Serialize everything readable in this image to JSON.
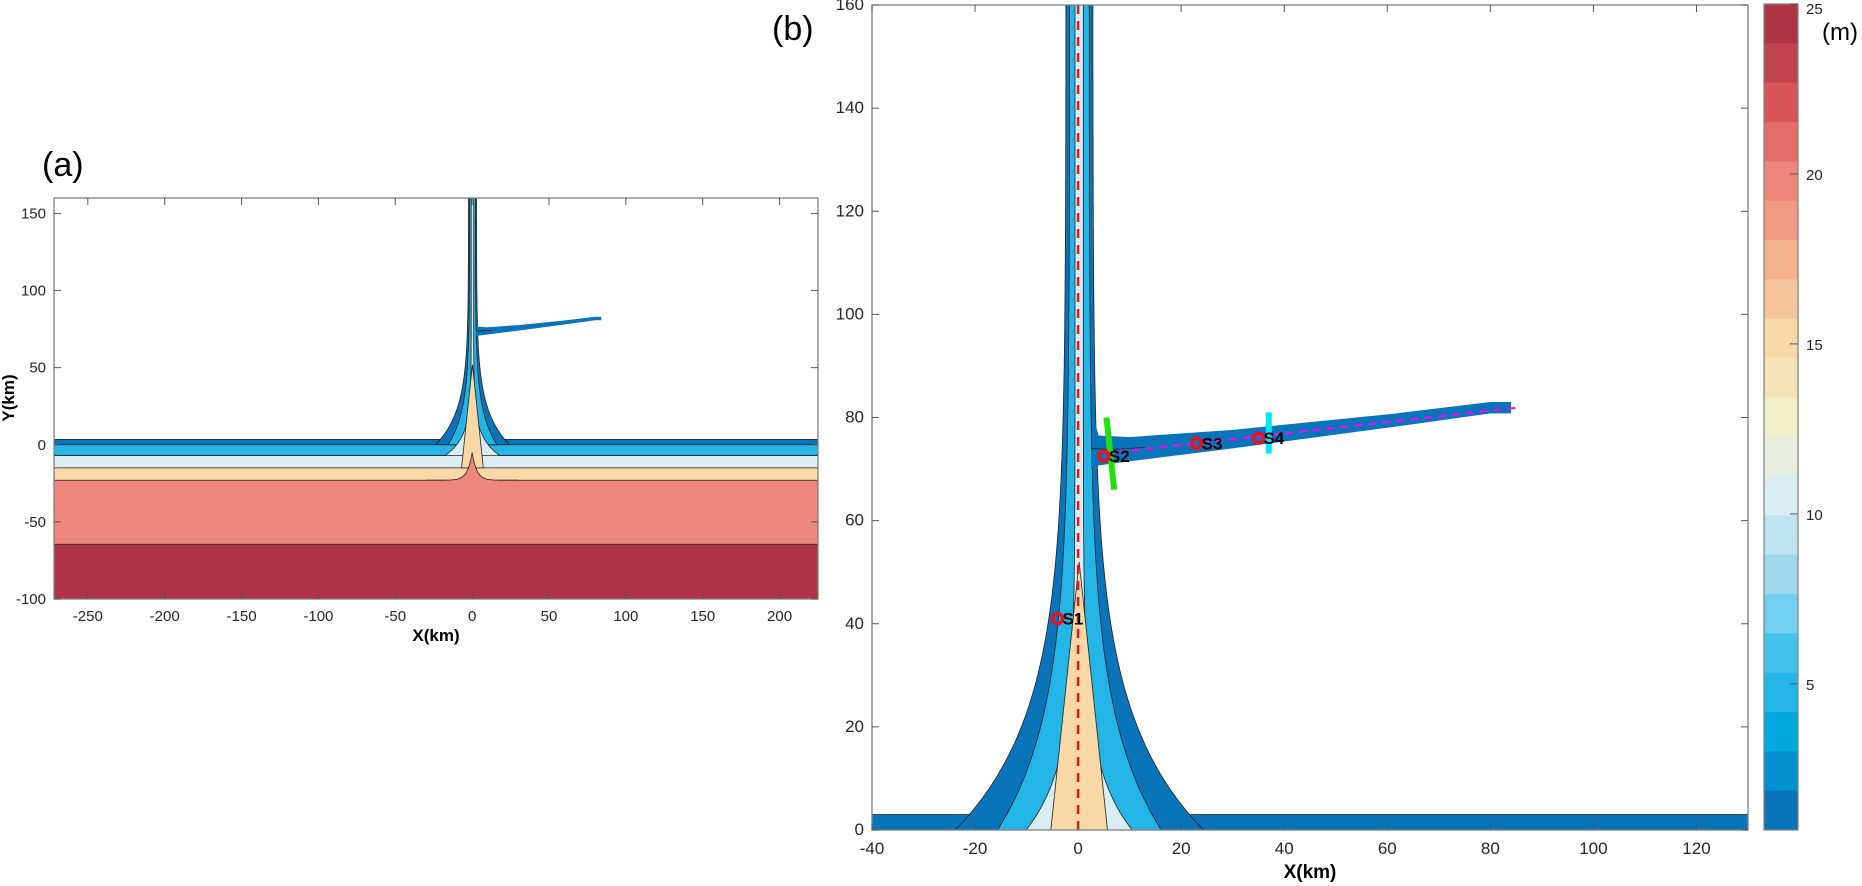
{
  "chart_data": [
    {
      "panel_label": "(a)",
      "type": "heatmap",
      "xlabel": "X(km)",
      "ylabel": "Y(km)",
      "xlim": [
        -272,
        225
      ],
      "ylim": [
        -100,
        160
      ],
      "xticks": [
        -250,
        -200,
        -150,
        -100,
        -50,
        0,
        50,
        100,
        150,
        200
      ],
      "yticks": [
        -100,
        -50,
        0,
        50,
        100,
        150
      ],
      "depth_bands_m_by_y_km": [
        {
          "y_from": 0,
          "y_to": 3.5,
          "color": "#0a74bb"
        },
        {
          "y_from": -7,
          "y_to": 0,
          "color": "#22b5e6"
        },
        {
          "y_from": -15,
          "y_to": -7,
          "color": "#d9ecf2"
        },
        {
          "y_from": -23,
          "y_to": -15,
          "color": "#f8d8a6"
        },
        {
          "y_from": -64.5,
          "y_to": -23,
          "color": "#ee857b"
        },
        {
          "y_from": -100,
          "y_to": -64.5,
          "color": "#ae3446"
        }
      ]
    },
    {
      "panel_label": "(b)",
      "type": "heatmap",
      "xlabel": "X(km)",
      "ylabel": "",
      "xlim": [
        -40,
        130
      ],
      "ylim": [
        0,
        160
      ],
      "xticks": [
        -40,
        -20,
        0,
        20,
        40,
        60,
        80,
        100,
        120
      ],
      "yticks": [
        0,
        20,
        40,
        60,
        80,
        100,
        120,
        140,
        160
      ],
      "stations": [
        {
          "name": "S1",
          "x": -4,
          "y": 41
        },
        {
          "name": "S2",
          "x": 5,
          "y": 72.5
        },
        {
          "name": "S3",
          "x": 23,
          "y": 75
        },
        {
          "name": "S4",
          "x": 35,
          "y": 76
        }
      ],
      "main_channel_transect": {
        "x": [
          0,
          0
        ],
        "y": [
          0,
          160
        ],
        "color": "#e8141c"
      },
      "branch_transect": {
        "x": [
          5,
          86
        ],
        "y": [
          73,
          82
        ],
        "color": "#ff00ff"
      },
      "section_green": {
        "x": [
          5.5,
          7
        ],
        "y": [
          80,
          66
        ],
        "color": "#22e010"
      },
      "section_cyan": {
        "x": [
          37,
          37
        ],
        "y": [
          73,
          81
        ],
        "color": "#00e8f8"
      }
    }
  ],
  "colorbar": {
    "unit": "(m)",
    "range": [
      0.7,
      25
    ],
    "ticks": [
      5,
      10,
      15,
      20,
      25
    ],
    "colors_top_to_bottom": [
      "#ae3446",
      "#c0444f",
      "#d95459",
      "#e36c68",
      "#ee857b",
      "#f19b83",
      "#f4b28c",
      "#f6c49b",
      "#f8d8a6",
      "#f5e3b8",
      "#f1efca",
      "#e6ecde",
      "#d9ecf2",
      "#bde3f0",
      "#9fd8ed",
      "#72cff0",
      "#44c4ec",
      "#22b5e6",
      "#00aade",
      "#0392cf",
      "#0a74bb"
    ]
  }
}
